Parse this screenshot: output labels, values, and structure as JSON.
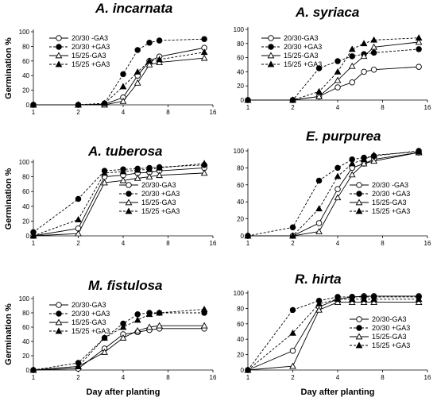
{
  "chart_data": [
    {
      "type": "line",
      "title": "A. incarnata",
      "xlabel": "",
      "ylabel": "Germination %",
      "x_scale": "log2",
      "x_ticks": [
        1,
        2,
        4,
        8,
        16
      ],
      "xlim": [
        1,
        16
      ],
      "ylim": [
        0,
        100
      ],
      "y_ticks": [
        0,
        20,
        40,
        60,
        80,
        100
      ],
      "legend": "top-left",
      "series": [
        {
          "name": "20/30 -GA3",
          "marker": "open-circle",
          "dashed": false,
          "x": [
            1,
            2,
            3,
            4,
            5,
            6,
            7,
            14
          ],
          "values": [
            0,
            0,
            1,
            10,
            40,
            60,
            66,
            78
          ]
        },
        {
          "name": "20/30 +GA3",
          "marker": "filled-circle",
          "dashed": true,
          "x": [
            1,
            2,
            3,
            4,
            5,
            6,
            7,
            14
          ],
          "values": [
            0,
            0,
            2,
            42,
            75,
            85,
            88,
            90
          ]
        },
        {
          "name": "15/25-GA3",
          "marker": "open-triangle",
          "dashed": false,
          "x": [
            1,
            2,
            3,
            4,
            5,
            6,
            7,
            14
          ],
          "values": [
            0,
            0,
            0,
            5,
            30,
            55,
            58,
            64
          ]
        },
        {
          "name": "15/25 +GA3",
          "marker": "filled-triangle",
          "dashed": true,
          "x": [
            1,
            2,
            3,
            4,
            5,
            6,
            7,
            14
          ],
          "values": [
            0,
            0,
            2,
            25,
            45,
            60,
            62,
            72
          ]
        }
      ]
    },
    {
      "type": "line",
      "title": "A. syriaca",
      "xlabel": "",
      "ylabel": "",
      "x_scale": "log2",
      "x_ticks": [
        1,
        2,
        4,
        8,
        16
      ],
      "xlim": [
        1,
        16
      ],
      "ylim": [
        0,
        100
      ],
      "y_ticks": [
        0,
        20,
        40,
        60,
        80,
        100
      ],
      "legend": "top-left",
      "series": [
        {
          "name": "20/30-GA3",
          "marker": "open-circle",
          "dashed": false,
          "x": [
            1,
            2,
            3,
            4,
            5,
            6,
            7,
            14
          ],
          "values": [
            0,
            0,
            5,
            18,
            25,
            40,
            43,
            47
          ]
        },
        {
          "name": "20/30 +GA3",
          "marker": "filled-circle",
          "dashed": true,
          "x": [
            1,
            2,
            3,
            4,
            5,
            6,
            7,
            14
          ],
          "values": [
            0,
            0,
            45,
            55,
            62,
            65,
            67,
            72
          ]
        },
        {
          "name": "15/25-GA3",
          "marker": "open-triangle",
          "dashed": false,
          "x": [
            1,
            2,
            3,
            4,
            5,
            6,
            7,
            14
          ],
          "values": [
            0,
            0,
            5,
            28,
            48,
            62,
            75,
            82
          ]
        },
        {
          "name": "15/25 +GA3",
          "marker": "filled-triangle",
          "dashed": true,
          "x": [
            1,
            2,
            3,
            4,
            5,
            6,
            7,
            14
          ],
          "values": [
            0,
            0,
            12,
            40,
            72,
            80,
            85,
            88
          ]
        }
      ]
    },
    {
      "type": "line",
      "title": "A. tuberosa",
      "xlabel": "",
      "ylabel": "Germination %",
      "x_scale": "log2",
      "x_ticks": [
        1,
        2,
        4,
        8,
        16
      ],
      "xlim": [
        1,
        16
      ],
      "ylim": [
        0,
        100
      ],
      "y_ticks": [
        0,
        20,
        40,
        60,
        80,
        100
      ],
      "legend": "bottom-right",
      "series": [
        {
          "name": "20/30-GA3",
          "marker": "open-circle",
          "dashed": false,
          "x": [
            1,
            2,
            3,
            4,
            5,
            6,
            7,
            14
          ],
          "values": [
            0,
            10,
            80,
            82,
            85,
            86,
            88,
            92
          ]
        },
        {
          "name": "20/30 +GA3",
          "marker": "filled-circle",
          "dashed": true,
          "x": [
            1,
            2,
            3,
            4,
            5,
            6,
            7,
            14
          ],
          "values": [
            5,
            50,
            88,
            90,
            91,
            92,
            93,
            96
          ]
        },
        {
          "name": "15/25-GA3",
          "marker": "open-triangle",
          "dashed": false,
          "x": [
            1,
            2,
            3,
            4,
            5,
            6,
            7,
            14
          ],
          "values": [
            0,
            3,
            72,
            75,
            78,
            80,
            82,
            85
          ]
        },
        {
          "name": "15/25 +GA3",
          "marker": "filled-triangle",
          "dashed": true,
          "x": [
            1,
            2,
            3,
            4,
            5,
            6,
            7,
            14
          ],
          "values": [
            0,
            22,
            85,
            87,
            89,
            90,
            92,
            98
          ]
        }
      ]
    },
    {
      "type": "line",
      "title": "E. purpurea",
      "xlabel": "",
      "ylabel": "",
      "x_scale": "log2",
      "x_ticks": [
        1,
        2,
        4,
        8,
        16
      ],
      "xlim": [
        1,
        16
      ],
      "ylim": [
        0,
        100
      ],
      "y_ticks": [
        0,
        20,
        40,
        60,
        80,
        100
      ],
      "legend": "bottom-right",
      "series": [
        {
          "name": "20/30 -GA3",
          "marker": "open-circle",
          "dashed": false,
          "x": [
            1,
            2,
            3,
            4,
            5,
            6,
            7,
            14
          ],
          "values": [
            0,
            0,
            15,
            55,
            80,
            85,
            90,
            98
          ]
        },
        {
          "name": "20/30 +GA3",
          "marker": "filled-circle",
          "dashed": true,
          "x": [
            1,
            2,
            3,
            4,
            5,
            6,
            7,
            14
          ],
          "values": [
            0,
            10,
            65,
            80,
            90,
            92,
            94,
            100
          ]
        },
        {
          "name": "15/25-GA3",
          "marker": "open-triangle",
          "dashed": false,
          "x": [
            1,
            2,
            3,
            4,
            5,
            6,
            7,
            14
          ],
          "values": [
            0,
            0,
            5,
            45,
            72,
            85,
            88,
            98
          ]
        },
        {
          "name": "15/25 +GA3",
          "marker": "filled-triangle",
          "dashed": true,
          "x": [
            1,
            2,
            3,
            4,
            5,
            6,
            7,
            14
          ],
          "values": [
            0,
            0,
            32,
            70,
            85,
            90,
            95,
            99
          ]
        }
      ]
    },
    {
      "type": "line",
      "title": "M. fistulosa",
      "xlabel": "Day after planting",
      "ylabel": "Germination %",
      "x_scale": "log2",
      "x_ticks": [
        1,
        2,
        4,
        8,
        16
      ],
      "xlim": [
        1,
        16
      ],
      "ylim": [
        0,
        100
      ],
      "y_ticks": [
        0,
        20,
        40,
        60,
        80,
        100
      ],
      "legend": "top-left",
      "series": [
        {
          "name": "20/30-GA3",
          "marker": "open-circle",
          "dashed": false,
          "x": [
            1,
            2,
            3,
            4,
            5,
            6,
            7,
            14
          ],
          "values": [
            0,
            2,
            30,
            50,
            53,
            56,
            58,
            58
          ]
        },
        {
          "name": "20/30 +GA3",
          "marker": "filled-circle",
          "dashed": true,
          "x": [
            1,
            2,
            3,
            4,
            5,
            6,
            7,
            14
          ],
          "values": [
            0,
            10,
            45,
            65,
            78,
            80,
            80,
            80
          ]
        },
        {
          "name": "15/25-GA3",
          "marker": "open-triangle",
          "dashed": false,
          "x": [
            1,
            2,
            3,
            4,
            5,
            6,
            7,
            14
          ],
          "values": [
            0,
            5,
            25,
            45,
            55,
            60,
            62,
            62
          ]
        },
        {
          "name": "15/25 +GA3",
          "marker": "filled-triangle",
          "dashed": true,
          "x": [
            1,
            2,
            3,
            4,
            5,
            6,
            7,
            14
          ],
          "values": [
            0,
            5,
            45,
            60,
            70,
            78,
            80,
            85
          ]
        }
      ]
    },
    {
      "type": "line",
      "title": "R. hirta",
      "xlabel": "Day after planting",
      "ylabel": "",
      "x_scale": "log2",
      "x_ticks": [
        1,
        2,
        4,
        8,
        16
      ],
      "xlim": [
        1,
        16
      ],
      "ylim": [
        0,
        100
      ],
      "y_ticks": [
        0,
        20,
        40,
        60,
        80,
        100
      ],
      "legend": "bottom-right",
      "series": [
        {
          "name": "20/30-GA3",
          "marker": "open-circle",
          "dashed": false,
          "x": [
            1,
            2,
            3,
            4,
            5,
            6,
            7,
            14
          ],
          "values": [
            0,
            25,
            82,
            92,
            95,
            96,
            96,
            96
          ]
        },
        {
          "name": "20/30 +GA3",
          "marker": "filled-circle",
          "dashed": true,
          "x": [
            1,
            2,
            3,
            4,
            5,
            6,
            7,
            14
          ],
          "values": [
            0,
            78,
            90,
            95,
            95,
            95,
            95,
            95
          ]
        },
        {
          "name": "15/25-GA3",
          "marker": "open-triangle",
          "dashed": false,
          "x": [
            1,
            2,
            3,
            4,
            5,
            6,
            7,
            14
          ],
          "values": [
            0,
            5,
            78,
            88,
            88,
            88,
            88,
            88
          ]
        },
        {
          "name": "15/25 +GA3",
          "marker": "filled-triangle",
          "dashed": true,
          "x": [
            1,
            2,
            3,
            4,
            5,
            6,
            7,
            14
          ],
          "values": [
            0,
            48,
            86,
            92,
            92,
            92,
            92,
            92
          ]
        }
      ]
    }
  ]
}
